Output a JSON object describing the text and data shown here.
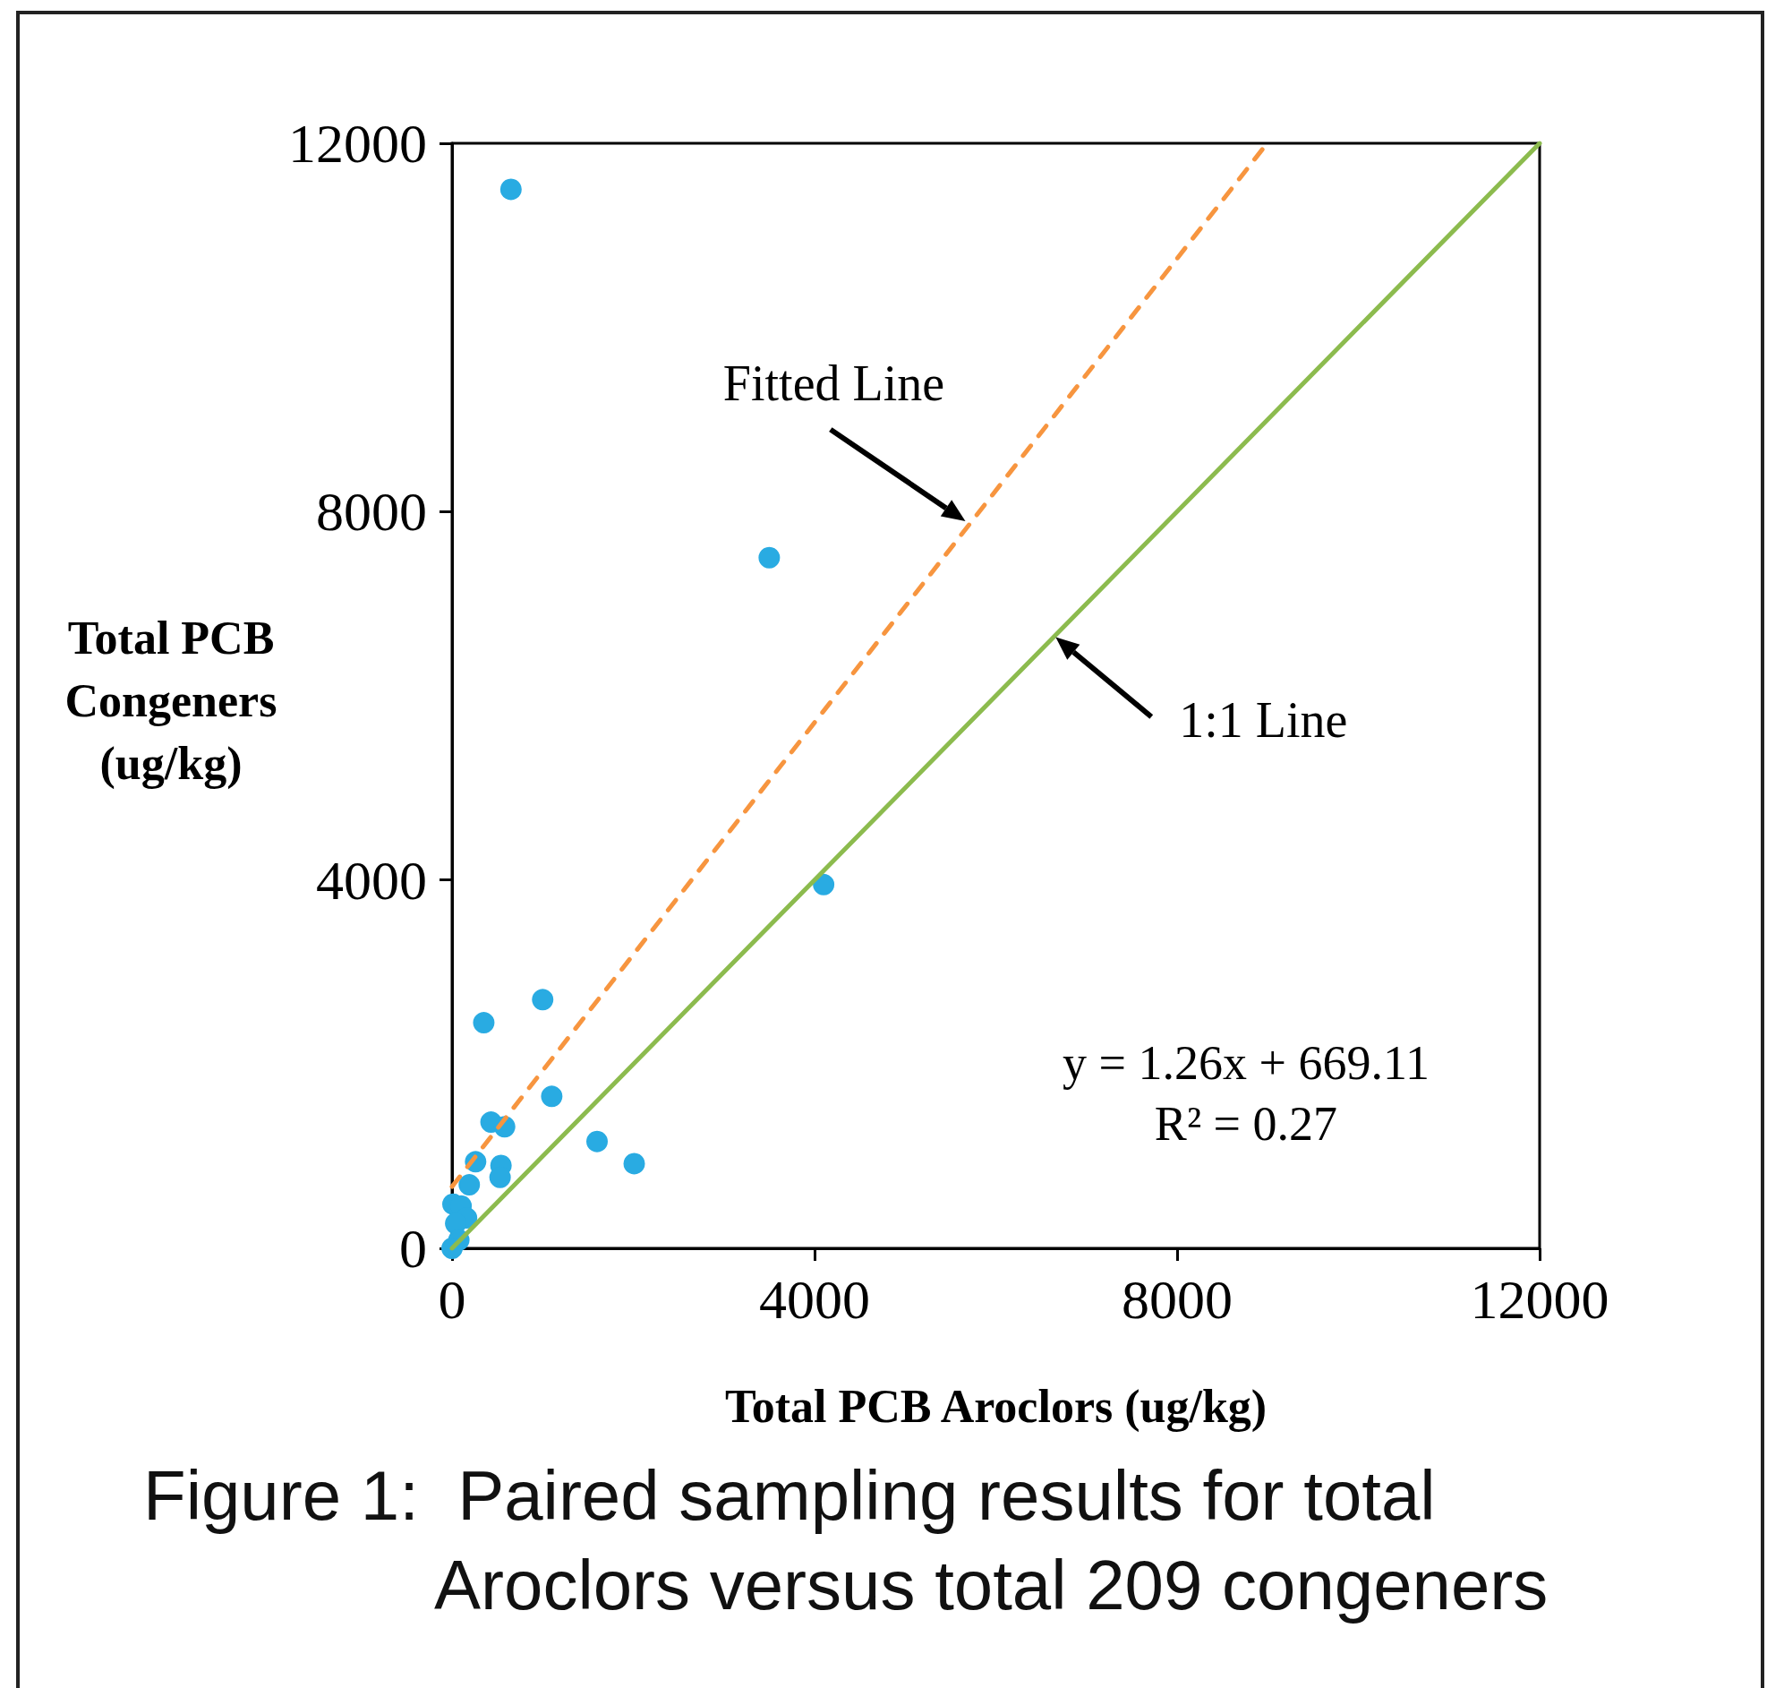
{
  "chart_data": {
    "type": "scatter",
    "title": "Figure 1:  Paired sampling results for total\nAroclors versus total 209 congeners",
    "xlabel": "Total PCB Aroclors (ug/kg)",
    "ylabel": "Total PCB\nCongeners\n(ug/kg)",
    "annotations": [
      "y = 1.26x + 669.11\nR² = 0.27"
    ],
    "xlim": [
      0,
      12000
    ],
    "ylim": [
      0,
      12000
    ],
    "xticks": [
      0,
      4000,
      8000,
      12000
    ],
    "yticks": [
      0,
      4000,
      8000,
      12000
    ],
    "grid": false,
    "legend": false,
    "marker": "circle",
    "series": [
      {
        "color": "#29abe2",
        "x": [
          650,
          3500,
          4100,
          1000,
          350,
          1100,
          430,
          580,
          1600,
          2010,
          260,
          540,
          530,
          190,
          10,
          100,
          160,
          40,
          75,
          0
        ],
        "values": [
          11500,
          7500,
          3950,
          2700,
          2450,
          1650,
          1370,
          1320,
          1160,
          920,
          940,
          900,
          770,
          690,
          480,
          460,
          330,
          270,
          90,
          0
        ]
      },
      {
        "type": "line",
        "name": "Fitted Line",
        "color": "#f7953f",
        "line_style": "dashed",
        "marker": "none",
        "x": [
          0,
          8993
        ],
        "values": [
          670,
          12000
        ]
      },
      {
        "type": "line",
        "name": "1:1 Line",
        "color": "#8cbb4e",
        "line_style": "solid",
        "marker": "none",
        "x": [
          0,
          12000
        ],
        "values": [
          0,
          12000
        ]
      }
    ]
  }
}
